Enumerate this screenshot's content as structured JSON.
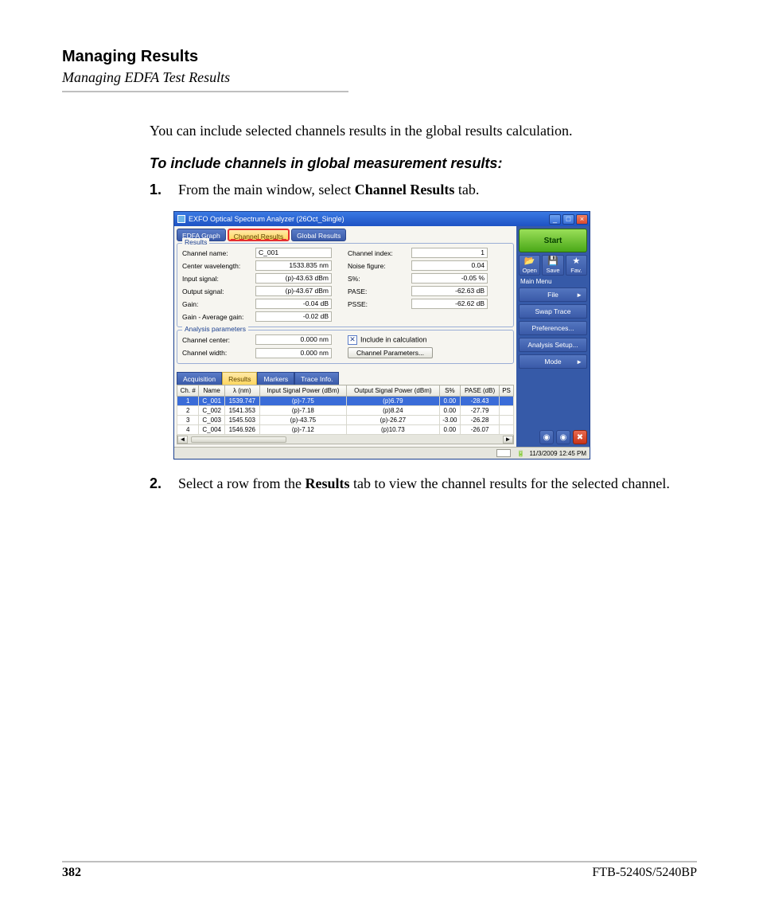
{
  "page": {
    "section_title": "Managing Results",
    "section_sub": "Managing EDFA Test Results",
    "intro": "You can include selected channels results in the global results calculation.",
    "instr_title": "To include channels in global measurement results:",
    "step1_pre": "From the main window, select ",
    "step1_bold": "Channel Results",
    "step1_post": " tab.",
    "step2_pre": "Select a row from the ",
    "step2_bold": "Results",
    "step2_post": " tab to view the channel results for the selected channel.",
    "page_num": "382",
    "doc_id": "FTB-5240S/5240BP"
  },
  "win": {
    "title": "EXFO Optical Spectrum Analyzer (26Oct_Single)",
    "tabs": {
      "edfa": "EDFA Graph",
      "channel": "Channel Results",
      "global": "Global Results"
    },
    "results_legend": "Results",
    "left": {
      "channel_name_l": "Channel name:",
      "channel_name_v": "C_001",
      "center_wl_l": "Center wavelength:",
      "center_wl_v": "1533.835 nm",
      "input_sig_l": "Input signal:",
      "input_sig_v": "(p)-43.63 dBm",
      "output_sig_l": "Output signal:",
      "output_sig_v": "(p)-43.67 dBm",
      "gain_l": "Gain:",
      "gain_v": "-0.04 dB",
      "gain_avg_l": "Gain - Average gain:",
      "gain_avg_v": "-0.02 dB"
    },
    "right": {
      "ch_index_l": "Channel index:",
      "ch_index_v": "1",
      "noise_fig_l": "Noise figure:",
      "noise_fig_v": "0.04",
      "spct_l": "S%:",
      "spct_v": "-0.05 %",
      "pase_l": "PASE:",
      "pase_v": "-62.63 dB",
      "psse_l": "PSSE:",
      "psse_v": "-62.62 dB"
    },
    "ap_legend": "Analysis parameters",
    "ap": {
      "center_l": "Channel center:",
      "center_v": "0.000 nm",
      "width_l": "Channel width:",
      "width_v": "0.000 nm",
      "include": "Include in calculation",
      "chparams": "Channel Parameters..."
    },
    "midtabs": {
      "acq": "Acquisition",
      "res": "Results",
      "mark": "Markers",
      "trace": "Trace Info."
    },
    "thead": {
      "ch": "Ch. #",
      "name": "Name",
      "lam": "λ (nm)",
      "inp": "Input Signal Power (dBm)",
      "out": "Output Signal Power (dBm)",
      "s": "S%",
      "pase": "PASE (dB)",
      "ps": "PS"
    },
    "rows": [
      {
        "ch": "1",
        "name": "C_001",
        "lam": "1539.747",
        "inp": "(p)-7.75",
        "out": "(p)6.79",
        "s": "0.00",
        "pase": "-28.43"
      },
      {
        "ch": "2",
        "name": "C_002",
        "lam": "1541.353",
        "inp": "(p)-7.18",
        "out": "(p)8.24",
        "s": "0.00",
        "pase": "-27.79"
      },
      {
        "ch": "3",
        "name": "C_003",
        "lam": "1545.503",
        "inp": "(p)-43.75",
        "out": "(p)-26.27",
        "s": "-3.00",
        "pase": "-26.28"
      },
      {
        "ch": "4",
        "name": "C_004",
        "lam": "1546.926",
        "inp": "(p)-7.12",
        "out": "(p)10.73",
        "s": "0.00",
        "pase": "-26.07"
      }
    ],
    "side": {
      "start": "Start",
      "open": "Open",
      "save": "Save",
      "fav": "Fav.",
      "main_menu": "Main Menu",
      "file": "File",
      "swap": "Swap Trace",
      "prefs": "Preferences...",
      "analysis": "Analysis Setup...",
      "mode": "Mode"
    },
    "status": {
      "time": "11/3/2009 12:45 PM"
    }
  }
}
